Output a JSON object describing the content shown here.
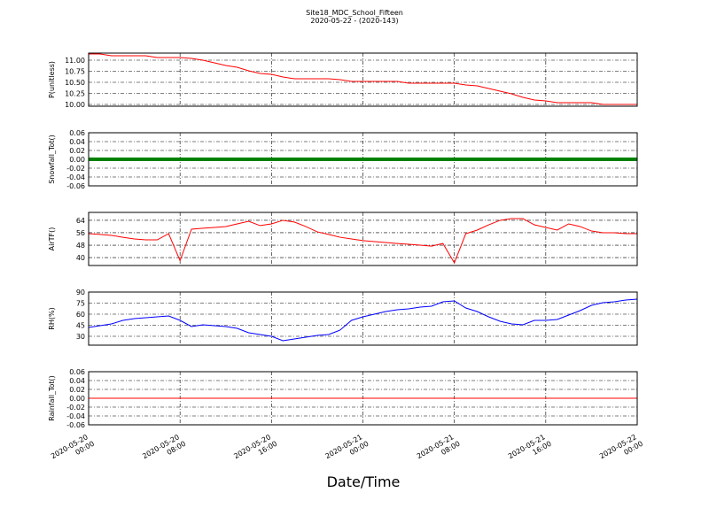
{
  "title": "Site18_MDC_School_Fifteen",
  "subtitle": "2020-05-22 - (2020-143)",
  "xlabel": "Date/Time",
  "x": [
    "2020-05-20 00:00",
    "2020-05-20 01:00",
    "2020-05-20 02:00",
    "2020-05-20 03:00",
    "2020-05-20 04:00",
    "2020-05-20 05:00",
    "2020-05-20 06:00",
    "2020-05-20 07:00",
    "2020-05-20 08:00",
    "2020-05-20 09:00",
    "2020-05-20 10:00",
    "2020-05-20 11:00",
    "2020-05-20 12:00",
    "2020-05-20 13:00",
    "2020-05-20 14:00",
    "2020-05-20 15:00",
    "2020-05-20 16:00",
    "2020-05-20 17:00",
    "2020-05-20 18:00",
    "2020-05-20 19:00",
    "2020-05-20 20:00",
    "2020-05-20 21:00",
    "2020-05-20 22:00",
    "2020-05-20 23:00",
    "2020-05-21 00:00",
    "2020-05-21 01:00",
    "2020-05-21 02:00",
    "2020-05-21 03:00",
    "2020-05-21 04:00",
    "2020-05-21 05:00",
    "2020-05-21 06:00",
    "2020-05-21 07:00",
    "2020-05-21 08:00",
    "2020-05-21 09:00",
    "2020-05-21 10:00",
    "2020-05-21 11:00",
    "2020-05-21 12:00",
    "2020-05-21 13:00",
    "2020-05-21 14:00",
    "2020-05-21 15:00",
    "2020-05-21 16:00",
    "2020-05-21 17:00",
    "2020-05-21 18:00",
    "2020-05-21 19:00",
    "2020-05-21 20:00",
    "2020-05-21 21:00",
    "2020-05-21 22:00",
    "2020-05-21 23:00",
    "2020-05-22 00:00"
  ],
  "xlim": [
    "2020-05-20 00:00",
    "2020-05-22 00:00"
  ],
  "xticks": [
    "2020-05-20 00:00",
    "2020-05-20 08:00",
    "2020-05-20 16:00",
    "2020-05-21 00:00",
    "2020-05-21 08:00",
    "2020-05-21 16:00",
    "2020-05-22 00:00"
  ],
  "chart_data": [
    {
      "type": "line",
      "ylabel": "P(unitless)",
      "grid": true,
      "ylim": [
        9.96,
        11.16
      ],
      "yticks": [
        {
          "value": 10.0,
          "label": "10.00"
        },
        10.25,
        {
          "value": 10.5,
          "label": "10.50"
        },
        10.75,
        {
          "value": 11.0,
          "label": "11.00"
        }
      ],
      "series": [
        {
          "color": "#ff0000",
          "values": [
            11.14,
            11.14,
            11.1,
            11.1,
            11.1,
            11.1,
            11.06,
            11.06,
            11.06,
            11.04,
            11.0,
            10.94,
            10.88,
            10.84,
            10.76,
            10.7,
            10.68,
            10.62,
            10.58,
            10.58,
            10.58,
            10.58,
            10.56,
            10.52,
            10.52,
            10.52,
            10.52,
            10.52,
            10.48,
            10.48,
            10.48,
            10.48,
            10.48,
            10.44,
            10.42,
            10.36,
            10.3,
            10.24,
            10.16,
            10.1,
            10.08,
            10.04,
            10.04,
            10.04,
            10.04,
            10.0,
            10.0,
            10.0,
            10.0
          ]
        }
      ]
    },
    {
      "type": "line",
      "ylabel": "Snowfall_Tot()",
      "grid": true,
      "ylim": [
        -0.06,
        0.06
      ],
      "yticks": [
        -0.06,
        -0.04,
        -0.02,
        {
          "value": 0,
          "label": "0.00"
        },
        0.02,
        0.04,
        0.06
      ],
      "series": [
        {
          "color": "#008000",
          "linewidth": 4,
          "values": [
            0,
            0,
            0,
            0,
            0,
            0,
            0,
            0,
            0,
            0,
            0,
            0,
            0,
            0,
            0,
            0,
            0,
            0,
            0,
            0,
            0,
            0,
            0,
            0,
            0,
            0,
            0,
            0,
            0,
            0,
            0,
            0,
            0,
            0,
            0,
            0,
            0,
            0,
            0,
            0,
            0,
            0,
            0,
            0,
            0,
            0,
            0,
            0,
            0
          ]
        }
      ]
    },
    {
      "type": "line",
      "ylabel": "AirTF()",
      "grid": true,
      "ylim": [
        34.9,
        69.1
      ],
      "yticks": [
        40,
        48,
        56,
        64
      ],
      "series": [
        {
          "color": "#ff0000",
          "values": [
            55.4,
            54.9,
            54.3,
            53.1,
            52.0,
            51.4,
            51.4,
            55.4,
            38.0,
            58.3,
            58.9,
            59.4,
            60.0,
            61.7,
            63.4,
            60.6,
            61.7,
            64.0,
            62.9,
            60.0,
            56.6,
            54.9,
            53.1,
            52.0,
            50.9,
            50.3,
            49.7,
            49.1,
            48.6,
            48.0,
            47.4,
            49.1,
            36.6,
            55.4,
            57.7,
            61.1,
            64.0,
            65.1,
            65.1,
            61.1,
            59.4,
            57.7,
            61.7,
            60.0,
            57.1,
            56.0,
            56.0,
            55.4,
            55.4
          ]
        }
      ]
    },
    {
      "type": "line",
      "ylabel": "RH(%)",
      "grid": true,
      "ylim": [
        18,
        90
      ],
      "yticks": [
        30,
        45,
        60,
        75,
        90
      ],
      "series": [
        {
          "color": "#0000ff",
          "values": [
            42.0,
            44.4,
            46.8,
            51.6,
            54.0,
            55.2,
            56.4,
            57.6,
            51.6,
            43.2,
            45.6,
            44.4,
            43.2,
            40.8,
            34.8,
            32.4,
            30.0,
            24.0,
            26.4,
            28.8,
            31.2,
            32.4,
            38.4,
            51.6,
            56.4,
            60.0,
            63.6,
            66.0,
            67.2,
            69.6,
            70.8,
            76.8,
            78.0,
            68.4,
            63.6,
            56.4,
            50.4,
            46.8,
            45.6,
            51.6,
            51.6,
            52.8,
            58.8,
            64.8,
            72.0,
            75.6,
            76.8,
            79.2,
            80.4
          ]
        }
      ]
    },
    {
      "type": "line",
      "ylabel": "Rainfall_Tot()",
      "grid": true,
      "ylim": [
        -0.06,
        0.06
      ],
      "yticks": [
        -0.06,
        -0.04,
        -0.02,
        {
          "value": 0,
          "label": "0.00"
        },
        0.02,
        0.04,
        0.06
      ],
      "series": [
        {
          "color": "#ff0000",
          "values": [
            0,
            0,
            0,
            0,
            0,
            0,
            0,
            0,
            0,
            0,
            0,
            0,
            0,
            0,
            0,
            0,
            0,
            0,
            0,
            0,
            0,
            0,
            0,
            0,
            0,
            0,
            0,
            0,
            0,
            0,
            0,
            0,
            0,
            0,
            0,
            0,
            0,
            0,
            0,
            0,
            0,
            0,
            0,
            0,
            0,
            0,
            0,
            0,
            0
          ]
        }
      ]
    }
  ]
}
